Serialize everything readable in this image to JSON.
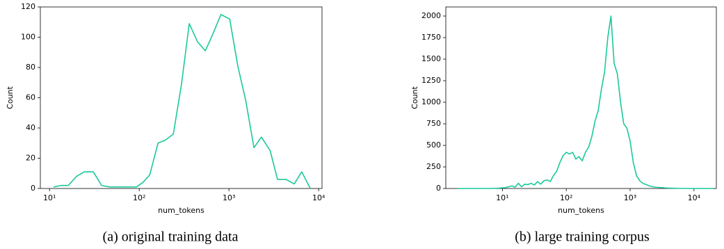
{
  "chart_data": [
    {
      "type": "line",
      "xlabel": "num_tokens",
      "ylabel": "Count",
      "caption": "(a) original training data",
      "log_x": true,
      "color": "#19c99a",
      "xlim": [
        7.9,
        10900
      ],
      "ylim": [
        0,
        120
      ],
      "xticks": [
        {
          "value": 10,
          "label": "10¹"
        },
        {
          "value": 100,
          "label": "10²"
        },
        {
          "value": 1000,
          "label": "10³"
        },
        {
          "value": 10000,
          "label": "10⁴"
        }
      ],
      "yticks": [
        0,
        20,
        40,
        60,
        80,
        100,
        120
      ],
      "x": [
        11.1,
        13.5,
        16.2,
        20,
        24.4,
        30.8,
        38,
        47,
        60,
        75,
        93,
        110,
        131,
        162,
        196,
        240,
        296,
        361,
        446,
        545,
        660,
        815,
        1020,
        1255,
        1540,
        1900,
        2300,
        2880,
        3480,
        4340,
        5340,
        6480,
        8070
      ],
      "values": [
        1,
        2,
        2,
        8,
        11,
        11,
        2,
        1,
        1,
        1,
        1,
        4,
        9,
        30,
        32,
        36,
        69,
        109,
        97,
        91,
        102,
        115,
        112,
        81,
        58,
        27,
        34,
        25,
        6,
        6,
        3,
        11,
        0
      ]
    },
    {
      "type": "line",
      "xlabel": "num_tokens",
      "ylabel": "Count",
      "caption": "(b) large training corpus",
      "log_x": true,
      "color": "#19c99a",
      "xlim": [
        1.3,
        22400
      ],
      "ylim": [
        0,
        2105
      ],
      "xticks": [
        {
          "value": 10,
          "label": "10¹"
        },
        {
          "value": 100,
          "label": "10²"
        },
        {
          "value": 1000,
          "label": "10³"
        },
        {
          "value": 10000,
          "label": "10⁴"
        }
      ],
      "yticks": [
        0,
        250,
        500,
        750,
        1000,
        1250,
        1500,
        1750,
        2000
      ],
      "x": [
        2.0,
        2.24,
        2.51,
        2.82,
        3.16,
        3.55,
        3.98,
        4.47,
        5.01,
        5.62,
        6.31,
        7.08,
        7.94,
        8.91,
        10,
        11.2,
        12.6,
        14.1,
        15.8,
        17.8,
        20,
        22.4,
        25.1,
        28.2,
        31.6,
        35.5,
        39.8,
        44.7,
        50.1,
        56.2,
        63.1,
        70.8,
        79.4,
        89.1,
        100,
        112,
        126,
        141,
        158,
        178,
        200,
        224,
        251,
        282,
        316,
        355,
        398,
        447,
        501,
        562,
        631,
        708,
        794,
        891,
        1000,
        1122,
        1259,
        1413,
        1585,
        1778,
        1995,
        2239,
        2512,
        2818,
        3162,
        3548,
        3981,
        4467,
        5012,
        5623,
        6310,
        7079,
        7943,
        8913,
        10000,
        11220,
        12589,
        14125,
        15849,
        17783,
        19953
      ],
      "values": [
        0,
        0,
        0,
        0,
        0,
        0,
        0,
        0,
        0,
        0,
        0,
        2,
        3,
        5,
        8,
        10,
        20,
        30,
        15,
        60,
        20,
        50,
        45,
        60,
        40,
        80,
        50,
        90,
        100,
        80,
        150,
        200,
        300,
        380,
        420,
        400,
        420,
        340,
        370,
        320,
        420,
        480,
        600,
        780,
        900,
        1150,
        1350,
        1750,
        2000,
        1450,
        1330,
        1000,
        750,
        700,
        550,
        300,
        150,
        90,
        60,
        45,
        30,
        20,
        15,
        12,
        10,
        7,
        5,
        4,
        3,
        2,
        1,
        1,
        1,
        0,
        0,
        0,
        0,
        0,
        0,
        0,
        0
      ]
    }
  ]
}
